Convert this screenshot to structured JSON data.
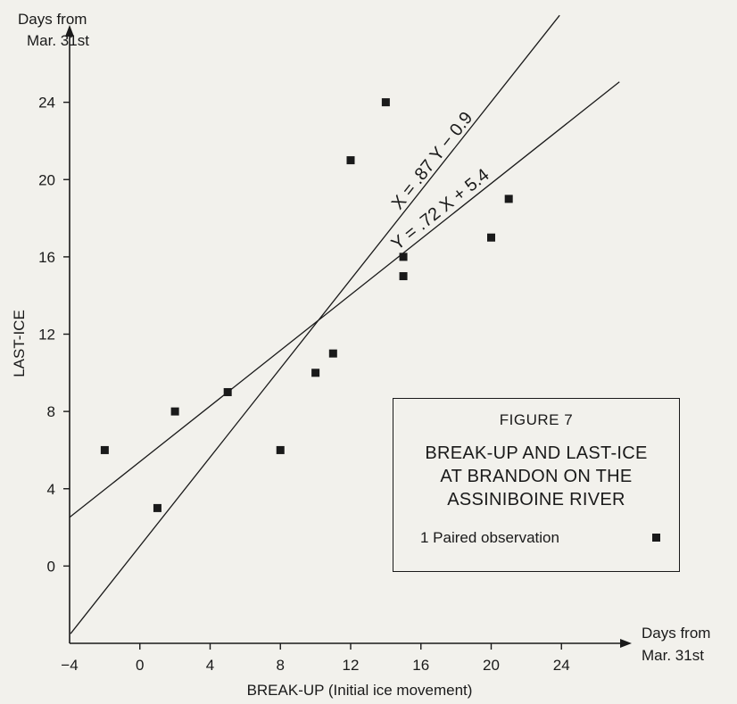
{
  "chart_data": {
    "type": "scatter",
    "title": "",
    "ylabel_top": [
      "Days from",
      "Mar. 31st"
    ],
    "ylabel": "LAST-ICE",
    "xlabel": "BREAK-UP (Initial ice movement)",
    "xlabel_right": [
      "Days from",
      "Mar. 31st"
    ],
    "xlim": [
      -4,
      28
    ],
    "ylim": [
      -4,
      28
    ],
    "xticks": [
      -4,
      0,
      4,
      8,
      12,
      16,
      20,
      24
    ],
    "xtick_labels": [
      "−4",
      "0",
      "4",
      "8",
      "12",
      "16",
      "20",
      "24"
    ],
    "yticks": [
      0,
      4,
      8,
      12,
      16,
      20,
      24
    ],
    "ytick_labels": [
      "0",
      "4",
      "8",
      "12",
      "16",
      "20",
      "24"
    ],
    "points": [
      {
        "x": -2,
        "y": 6
      },
      {
        "x": 1,
        "y": 3
      },
      {
        "x": 2,
        "y": 8
      },
      {
        "x": 5,
        "y": 9
      },
      {
        "x": 8,
        "y": 6
      },
      {
        "x": 10,
        "y": 10
      },
      {
        "x": 11,
        "y": 11
      },
      {
        "x": 12,
        "y": 21
      },
      {
        "x": 14,
        "y": 24
      },
      {
        "x": 15,
        "y": 16
      },
      {
        "x": 15,
        "y": 15
      },
      {
        "x": 20,
        "y": 17
      },
      {
        "x": 21,
        "y": 19
      }
    ],
    "regression_lines": [
      {
        "label": "X = .87 Y − 0.9",
        "form": "x_of_y",
        "slope": 0.87,
        "intercept": -0.9
      },
      {
        "label": "Y = .72 X + 5.4",
        "form": "y_of_x",
        "slope": 0.72,
        "intercept": 5.4
      }
    ],
    "legend": {
      "figure_number": "FIGURE 7",
      "title_lines": [
        "BREAK-UP AND LAST-ICE",
        "AT BRANDON ON THE",
        "ASSINIBOINE RIVER"
      ],
      "entry_label": "1 Paired observation",
      "position": "bottom-right"
    },
    "colors": {
      "ink": "#1a1a1a",
      "paper": "#f2f1ec"
    }
  }
}
